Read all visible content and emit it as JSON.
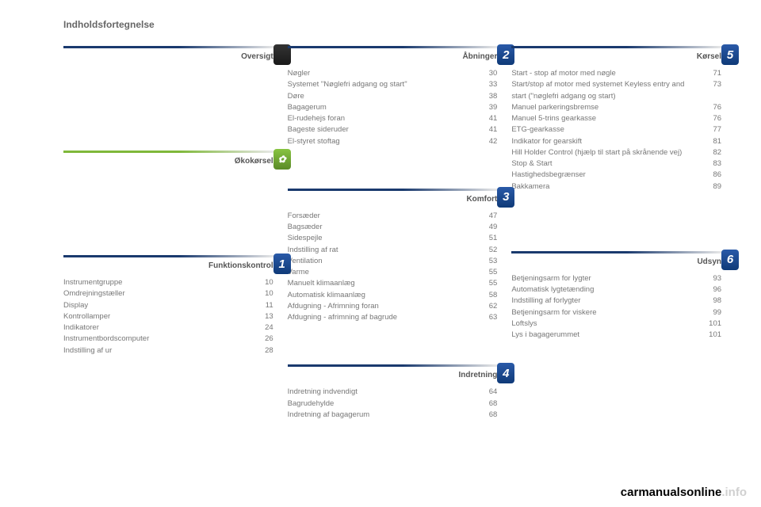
{
  "page_title": "Indholdsfortegnelse",
  "watermark": {
    "dark": "carmanualsonline",
    "light": ".info"
  },
  "colors": {
    "blue_gradient_start": "#1a3a6e",
    "green_gradient_start": "#7fb83a",
    "badge_blue": "#2a5aa8",
    "badge_green": "#88c442",
    "badge_dark": "#1a1a1a",
    "text": "#777777"
  },
  "col1": {
    "oversigt": {
      "title": "Oversigt",
      "badge": ""
    },
    "okokorsel": {
      "title": "Økokørsel"
    },
    "funktionskontrol": {
      "title": "Funktionskontrol",
      "badge": "1",
      "entries": [
        {
          "label": "Instrumentgruppe",
          "page": "10"
        },
        {
          "label": "Omdrejningstæller",
          "page": "10"
        },
        {
          "label": "Display",
          "page": "11"
        },
        {
          "label": "Kontrollamper",
          "page": "13"
        },
        {
          "label": "Indikatorer",
          "page": "24"
        },
        {
          "label": "Instrumentbordscomputer",
          "page": "26"
        },
        {
          "label": "Indstilling af ur",
          "page": "28"
        }
      ]
    }
  },
  "col2": {
    "abninger": {
      "title": "Åbninger",
      "badge": "2",
      "entries": [
        {
          "label": "Nøgler",
          "page": "30"
        },
        {
          "label": "Systemet \"Nøglefri adgang og start\"",
          "page": "33"
        },
        {
          "label": "Døre",
          "page": "38"
        },
        {
          "label": "Bagagerum",
          "page": "39"
        },
        {
          "label": "El-rudehejs foran",
          "page": "41"
        },
        {
          "label": "Bageste sideruder",
          "page": "41"
        },
        {
          "label": "El-styret stoftag",
          "page": "42"
        }
      ]
    },
    "komfort": {
      "title": "Komfort",
      "badge": "3",
      "entries": [
        {
          "label": "Forsæder",
          "page": "47"
        },
        {
          "label": "Bagsæder",
          "page": "49"
        },
        {
          "label": "Sidespejle",
          "page": "51"
        },
        {
          "label": "Indstilling af rat",
          "page": "52"
        },
        {
          "label": "Ventilation",
          "page": "53"
        },
        {
          "label": "Varme",
          "page": "55"
        },
        {
          "label": "Manuelt klimaanlæg",
          "page": "55"
        },
        {
          "label": "Automatisk klimaanlæg",
          "page": "58"
        },
        {
          "label": "Afdugning - Afrimning foran",
          "page": "62"
        },
        {
          "label": "Afdugning - afrimning af bagrude",
          "page": "63"
        }
      ]
    },
    "indretning": {
      "title": "Indretning",
      "badge": "4",
      "entries": [
        {
          "label": "Indretning indvendigt",
          "page": "64"
        },
        {
          "label": "Bagrudehylde",
          "page": "68"
        },
        {
          "label": "Indretning af bagagerum",
          "page": "68"
        }
      ]
    }
  },
  "col3": {
    "korsel": {
      "title": "Kørsel",
      "badge": "5",
      "entries": [
        {
          "label": "Start - stop af motor med nøgle",
          "page": "71"
        },
        {
          "label": "Start/stop af motor med systemet Keyless entry and start (\"nøglefri adgang og start)",
          "page": "73"
        },
        {
          "label": "Manuel parkeringsbremse",
          "page": "76"
        },
        {
          "label": "Manuel 5-trins gearkasse",
          "page": "76"
        },
        {
          "label": "ETG-gearkasse",
          "page": "77"
        },
        {
          "label": "Indikator for gearskift",
          "page": "81"
        },
        {
          "label": "Hill Holder Control (hjælp til start på skrånende vej)",
          "page": "82"
        },
        {
          "label": "Stop & Start",
          "page": "83"
        },
        {
          "label": "Hastighedsbegrænser",
          "page": "86"
        },
        {
          "label": "Bakkamera",
          "page": "89"
        }
      ]
    },
    "udsyn": {
      "title": "Udsyn",
      "badge": "6",
      "entries": [
        {
          "label": "Betjeningsarm for lygter",
          "page": "93"
        },
        {
          "label": "Automatisk lygtetænding",
          "page": "96"
        },
        {
          "label": "Indstilling af forlygter",
          "page": "98"
        },
        {
          "label": "Betjeningsarm for viskere",
          "page": "99"
        },
        {
          "label": "Loftslys",
          "page": "101"
        },
        {
          "label": "Lys i bagagerummet",
          "page": "101"
        }
      ]
    }
  }
}
